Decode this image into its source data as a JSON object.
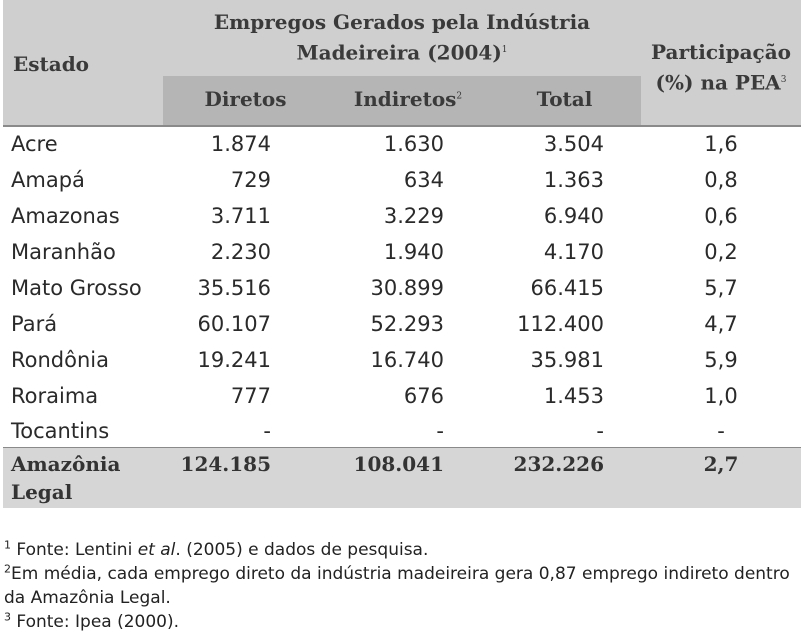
{
  "header": {
    "estado": "Estado",
    "group_line1": "Empregos Gerados pela Indústria",
    "group_line2": "Madeireira (2004)",
    "group_sup": "1",
    "diretos": "Diretos",
    "indiretos": "Indiretos",
    "indiretos_sup": "2",
    "total": "Total",
    "pea_line1": "Participação",
    "pea_line2": "(%) na PEA",
    "pea_sup": "3"
  },
  "rows": [
    {
      "estado": "Acre",
      "diretos": "1.874",
      "indiretos": "1.630",
      "total": "3.504",
      "pea": "1,6"
    },
    {
      "estado": "Amapá",
      "diretos": "729",
      "indiretos": "634",
      "total": "1.363",
      "pea": "0,8"
    },
    {
      "estado": "Amazonas",
      "diretos": "3.711",
      "indiretos": "3.229",
      "total": "6.940",
      "pea": "0,6"
    },
    {
      "estado": "Maranhão",
      "diretos": "2.230",
      "indiretos": "1.940",
      "total": "4.170",
      "pea": "0,2"
    },
    {
      "estado": "Mato Grosso",
      "diretos": "35.516",
      "indiretos": "30.899",
      "total": "66.415",
      "pea": "5,7"
    },
    {
      "estado": "Pará",
      "diretos": "60.107",
      "indiretos": "52.293",
      "total": "112.400",
      "pea": "4,7"
    },
    {
      "estado": "Rondônia",
      "diretos": "19.241",
      "indiretos": "16.740",
      "total": "35.981",
      "pea": "5,9"
    },
    {
      "estado": "Roraima",
      "diretos": "777",
      "indiretos": "676",
      "total": "1.453",
      "pea": "1,0"
    },
    {
      "estado": "Tocantins",
      "diretos": "-",
      "indiretos": "-",
      "total": "-",
      "pea": "-"
    }
  ],
  "total_row": {
    "estado_line1": "Amazônia",
    "estado_line2": "Legal",
    "diretos": "124.185",
    "indiretos": "108.041",
    "total": "232.226",
    "pea": "2,7"
  },
  "notes": {
    "n1_sup": "1",
    "n1_a": "Fonte: Lentini ",
    "n1_em": "et al",
    "n1_b": ". (2005) e dados de pesquisa.",
    "n2_sup": "2",
    "n2_text": "Em média, cada emprego direto da indústria madeireira gera 0,87 emprego indireto dentro da Amazônia Legal.",
    "n3_sup": "3",
    "n3_text": "Fonte: Ipea (2000)."
  }
}
